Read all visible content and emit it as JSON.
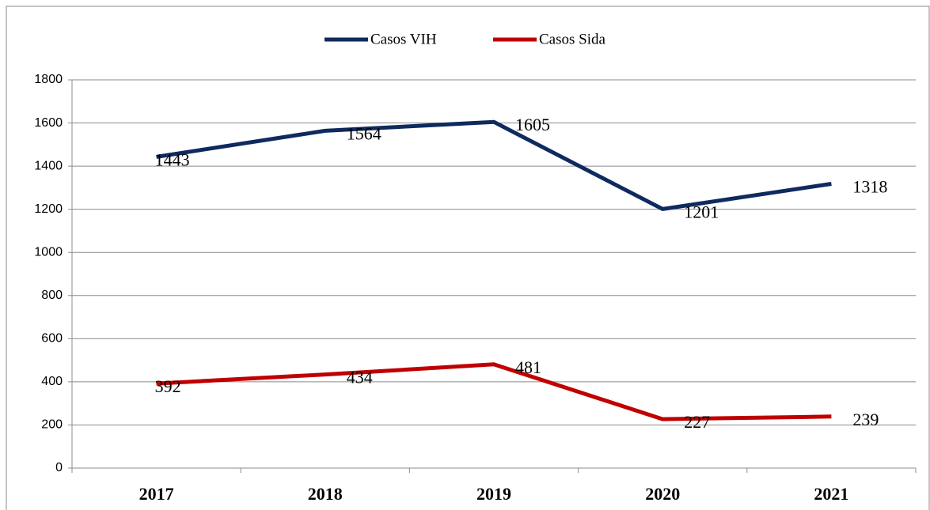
{
  "chart_data": {
    "type": "line",
    "categories": [
      "2017",
      "2018",
      "2019",
      "2020",
      "2021"
    ],
    "series": [
      {
        "name": "Casos VIH",
        "color": "#0f2a5f",
        "values": [
          1443,
          1564,
          1605,
          1201,
          1318
        ]
      },
      {
        "name": "Casos Sida",
        "color": "#c00000",
        "values": [
          392,
          434,
          481,
          227,
          239
        ]
      }
    ],
    "ylim": [
      0,
      1800
    ],
    "yticks": [
      0,
      200,
      400,
      600,
      800,
      1000,
      1200,
      1400,
      1600,
      1800
    ],
    "grid": true,
    "legend": "top"
  }
}
